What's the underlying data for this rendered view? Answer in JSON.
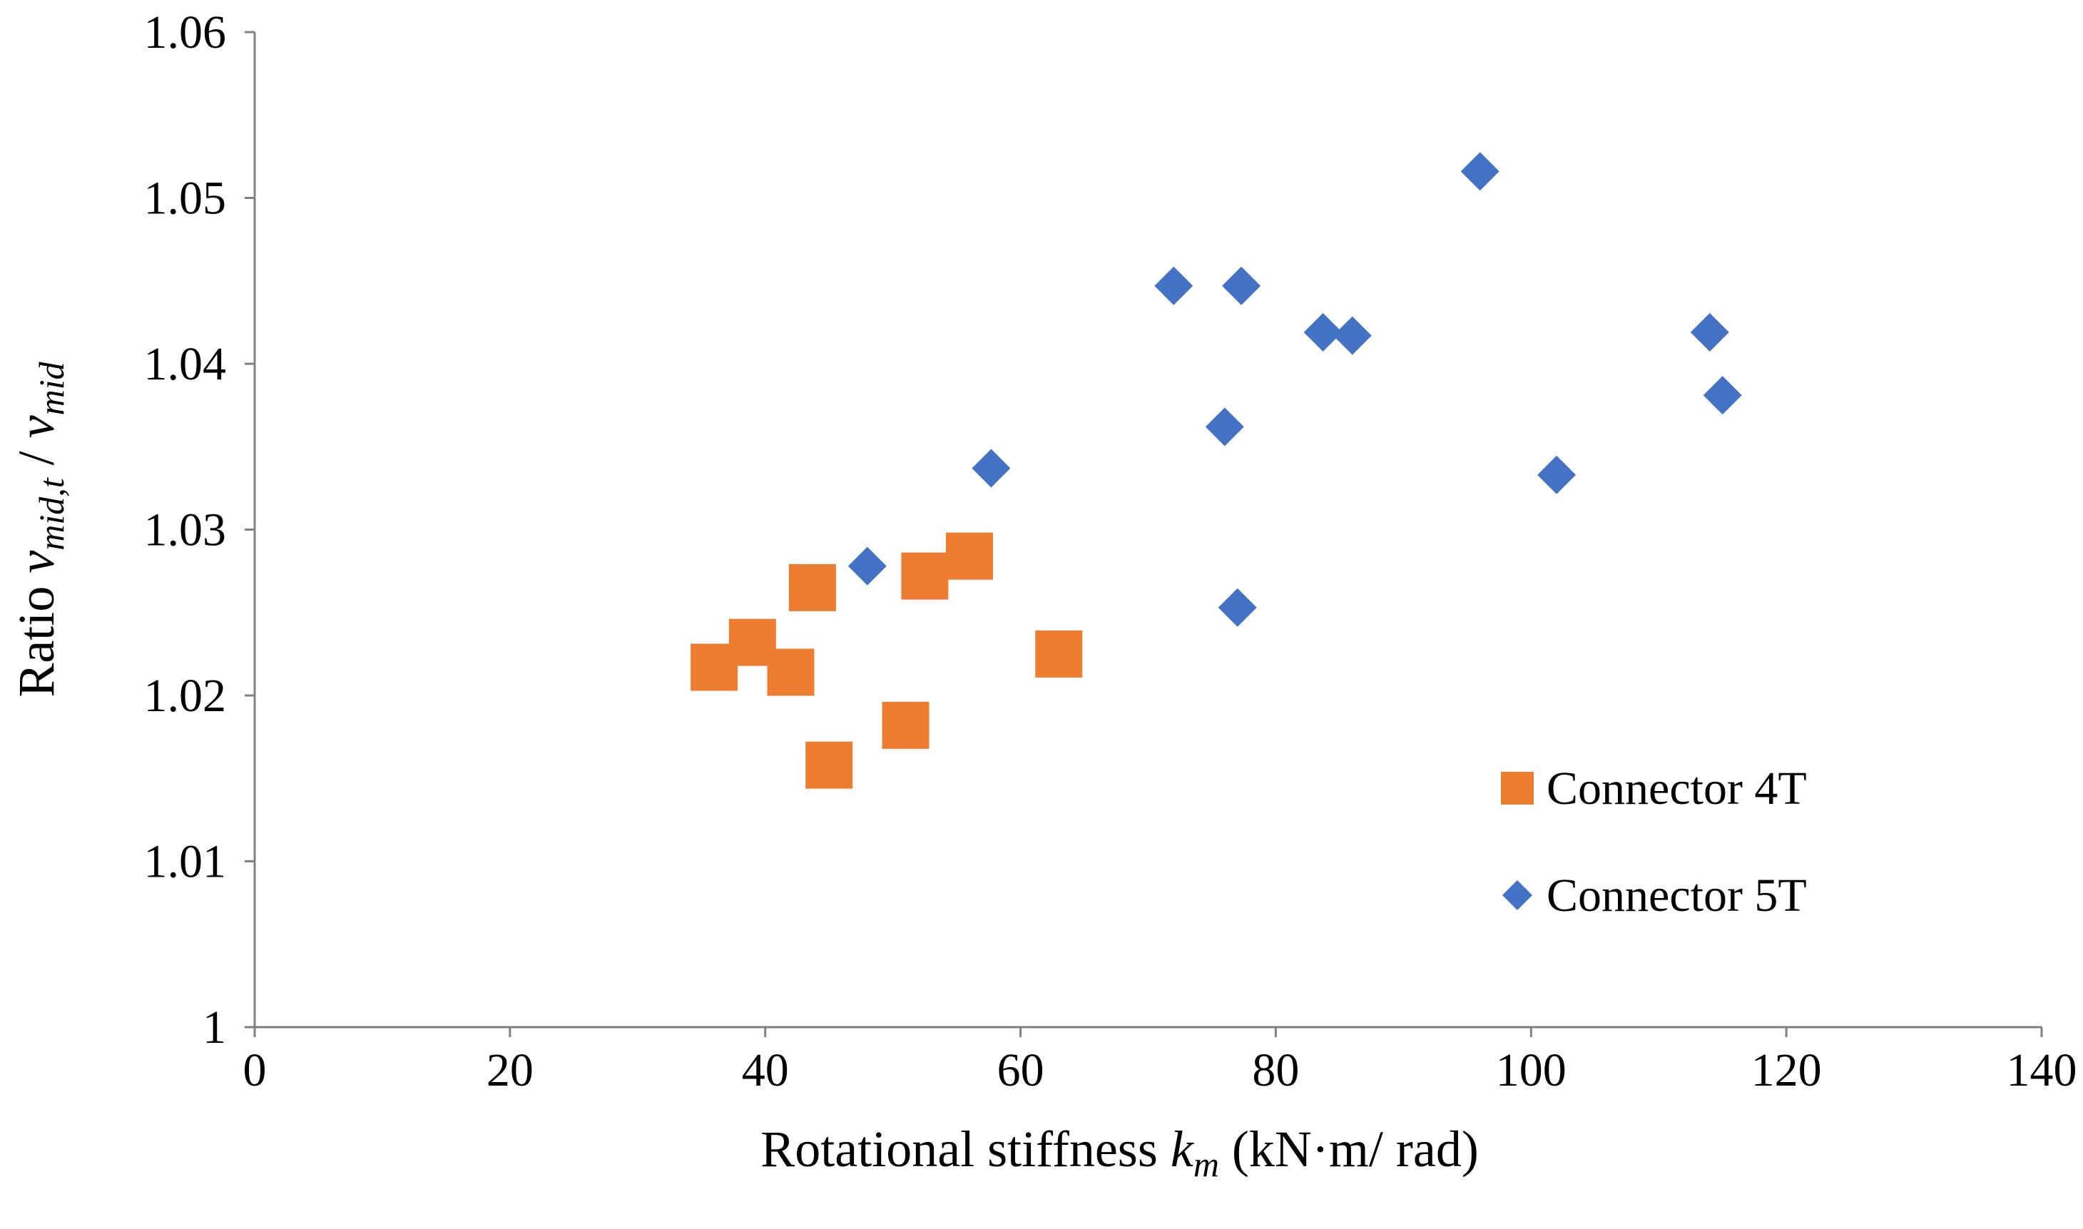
{
  "chart_data": {
    "type": "scatter",
    "title": "",
    "xlabel": {
      "prefix": "Rotational stiffness ",
      "symbol": "k",
      "subscript": "m",
      "suffix": " (kN·m/ rad)"
    },
    "ylabel": {
      "prefix": "Ratio ",
      "symbol1": "v",
      "subscript1": "mid,t",
      "separator": " / ",
      "symbol2": "v",
      "subscript2": "mid"
    },
    "xlim": [
      0,
      140
    ],
    "ylim": [
      1.0,
      1.06
    ],
    "xticks": [
      0,
      20,
      40,
      60,
      80,
      100,
      120,
      140
    ],
    "xtick_labels": [
      "0",
      "20",
      "40",
      "60",
      "80",
      "100",
      "120",
      "140"
    ],
    "yticks": [
      1.0,
      1.01,
      1.02,
      1.03,
      1.04,
      1.05,
      1.06
    ],
    "ytick_labels": [
      "1",
      "1.01",
      "1.02",
      "1.03",
      "1.04",
      "1.05",
      "1.06"
    ],
    "grid": false,
    "legend_position": "right",
    "series": [
      {
        "name": "Connector 4T",
        "marker": "square",
        "color": "#ED7D31",
        "points": [
          {
            "x": 36,
            "y": 1.0217
          },
          {
            "x": 39,
            "y": 1.0232
          },
          {
            "x": 42,
            "y": 1.0214
          },
          {
            "x": 43.7,
            "y": 1.0265
          },
          {
            "x": 45,
            "y": 1.0158
          },
          {
            "x": 51,
            "y": 1.0182
          },
          {
            "x": 52.5,
            "y": 1.0272
          },
          {
            "x": 56,
            "y": 1.0284
          },
          {
            "x": 63,
            "y": 1.0225
          }
        ]
      },
      {
        "name": "Connector 5T",
        "marker": "diamond",
        "color": "#4472C4",
        "points": [
          {
            "x": 48,
            "y": 1.0278
          },
          {
            "x": 57.7,
            "y": 1.0337
          },
          {
            "x": 72,
            "y": 1.0447
          },
          {
            "x": 76,
            "y": 1.0362
          },
          {
            "x": 77,
            "y": 1.0253
          },
          {
            "x": 77.3,
            "y": 1.0447
          },
          {
            "x": 83.7,
            "y": 1.0419
          },
          {
            "x": 86,
            "y": 1.0417
          },
          {
            "x": 96,
            "y": 1.0516
          },
          {
            "x": 102,
            "y": 1.0333
          },
          {
            "x": 114,
            "y": 1.0419
          },
          {
            "x": 115,
            "y": 1.0381
          }
        ]
      }
    ]
  }
}
